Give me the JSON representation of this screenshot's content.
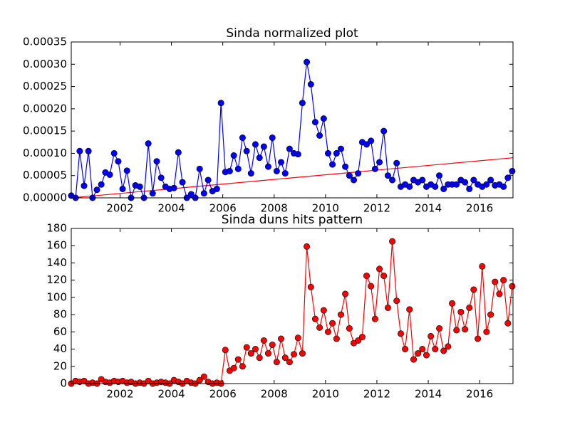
{
  "chart_data": [
    {
      "type": "line",
      "title": "Sinda normalized plot",
      "x": [
        2000.1,
        2000.27,
        2000.43,
        2000.6,
        2000.77,
        2000.93,
        2001.1,
        2001.27,
        2001.43,
        2001.6,
        2001.77,
        2001.93,
        2002.1,
        2002.27,
        2002.43,
        2002.6,
        2002.77,
        2002.93,
        2003.1,
        2003.27,
        2003.43,
        2003.6,
        2003.77,
        2003.93,
        2004.1,
        2004.27,
        2004.43,
        2004.6,
        2004.77,
        2004.93,
        2005.1,
        2005.27,
        2005.43,
        2005.6,
        2005.77,
        2005.93,
        2006.1,
        2006.27,
        2006.43,
        2006.6,
        2006.77,
        2006.93,
        2007.1,
        2007.27,
        2007.43,
        2007.6,
        2007.77,
        2007.93,
        2008.1,
        2008.27,
        2008.43,
        2008.6,
        2008.77,
        2008.93,
        2009.1,
        2009.27,
        2009.43,
        2009.6,
        2009.77,
        2009.93,
        2010.1,
        2010.27,
        2010.43,
        2010.6,
        2010.77,
        2010.93,
        2011.1,
        2011.27,
        2011.43,
        2011.6,
        2011.77,
        2011.93,
        2012.1,
        2012.27,
        2012.43,
        2012.6,
        2012.77,
        2012.93,
        2013.1,
        2013.27,
        2013.43,
        2013.6,
        2013.77,
        2013.93,
        2014.1,
        2014.27,
        2014.43,
        2014.6,
        2014.77,
        2014.93,
        2015.1,
        2015.27,
        2015.43,
        2015.6,
        2015.77,
        2015.93,
        2016.1,
        2016.27,
        2016.43,
        2016.6,
        2016.77,
        2016.93,
        2017.1,
        2017.27
      ],
      "series": [
        {
          "color": "#0000ff",
          "values": [
            5e-06,
            0,
            0.000105,
            2.7e-05,
            0.000105,
            0,
            1.8e-05,
            3e-05,
            5.7e-05,
            5.2e-05,
            0.0001,
            8.2e-05,
            2e-05,
            6.1e-05,
            0,
            2.8e-05,
            2.5e-05,
            0,
            0.000122,
            1e-05,
            8.2e-05,
            4.5e-05,
            2.5e-05,
            2e-05,
            2.2e-05,
            0.000102,
            3.5e-05,
            0,
            8e-06,
            0,
            6.5e-05,
            1e-05,
            4e-05,
            1.5e-05,
            2e-05,
            0.000213,
            5.8e-05,
            6e-05,
            9.5e-05,
            6.5e-05,
            0.000135,
            0.000105,
            5.5e-05,
            0.00012,
            9e-05,
            0.000115,
            7e-05,
            0.000135,
            6e-05,
            8e-05,
            5.5e-05,
            0.00011,
            0.0001,
            9.8e-05,
            0.000213,
            0.000305,
            0.000255,
            0.00017,
            0.00014,
            0.000178,
            0.0001,
            7.5e-05,
            0.0001,
            0.00011,
            7e-05,
            5e-05,
            4e-05,
            5.5e-05,
            0.000125,
            0.00012,
            0.000128,
            6.5e-05,
            8e-05,
            0.00015,
            5e-05,
            4e-05,
            7.8e-05,
            2.5e-05,
            3e-05,
            2.5e-05,
            4e-05,
            3.5e-05,
            4e-05,
            2.5e-05,
            3e-05,
            2.5e-05,
            5e-05,
            2e-05,
            3e-05,
            3e-05,
            3e-05,
            4e-05,
            3.5e-05,
            2e-05,
            4e-05,
            3e-05,
            2.5e-05,
            3e-05,
            4e-05,
            2.8e-05,
            3e-05,
            2.5e-05,
            4.5e-05,
            6e-05
          ]
        }
      ],
      "trend": {
        "color": "#ff0000",
        "x": [
          2000.1,
          2017.3
        ],
        "values": [
          0,
          9e-05
        ]
      },
      "xlim": [
        2000.1,
        2017.3
      ],
      "xticks": [
        2002,
        2004,
        2006,
        2008,
        2010,
        2012,
        2014,
        2016
      ],
      "ylim": [
        0,
        0.00035
      ],
      "yticks": [
        {
          "value": 0,
          "label": "0.00000"
        },
        {
          "value": 5e-05,
          "label": "0.00005"
        },
        {
          "value": 0.0001,
          "label": "0.00010"
        },
        {
          "value": 0.00015,
          "label": "0.00015"
        },
        {
          "value": 0.0002,
          "label": "0.00020"
        },
        {
          "value": 0.00025,
          "label": "0.00025"
        },
        {
          "value": 0.0003,
          "label": "0.00030"
        },
        {
          "value": 0.00035,
          "label": "0.00035"
        }
      ]
    },
    {
      "type": "line",
      "title": "Sinda duns hits pattern",
      "x": [
        2000.1,
        2000.27,
        2000.43,
        2000.6,
        2000.77,
        2000.93,
        2001.1,
        2001.27,
        2001.43,
        2001.6,
        2001.77,
        2001.93,
        2002.1,
        2002.27,
        2002.43,
        2002.6,
        2002.77,
        2002.93,
        2003.1,
        2003.27,
        2003.43,
        2003.6,
        2003.77,
        2003.93,
        2004.1,
        2004.27,
        2004.43,
        2004.6,
        2004.77,
        2004.93,
        2005.1,
        2005.27,
        2005.43,
        2005.6,
        2005.77,
        2005.93,
        2006.1,
        2006.27,
        2006.43,
        2006.6,
        2006.77,
        2006.93,
        2007.1,
        2007.27,
        2007.43,
        2007.6,
        2007.77,
        2007.93,
        2008.1,
        2008.27,
        2008.43,
        2008.6,
        2008.77,
        2008.93,
        2009.1,
        2009.27,
        2009.43,
        2009.6,
        2009.77,
        2009.93,
        2010.1,
        2010.27,
        2010.43,
        2010.6,
        2010.77,
        2010.93,
        2011.1,
        2011.27,
        2011.43,
        2011.6,
        2011.77,
        2011.93,
        2012.1,
        2012.27,
        2012.43,
        2012.6,
        2012.77,
        2012.93,
        2013.1,
        2013.27,
        2013.43,
        2013.6,
        2013.77,
        2013.93,
        2014.1,
        2014.27,
        2014.43,
        2014.6,
        2014.77,
        2014.93,
        2015.1,
        2015.27,
        2015.43,
        2015.6,
        2015.77,
        2015.93,
        2016.1,
        2016.27,
        2016.43,
        2016.6,
        2016.77,
        2016.93,
        2017.1,
        2017.27
      ],
      "series": [
        {
          "color": "#ff0000",
          "values": [
            0,
            3,
            2,
            3,
            0,
            1,
            0,
            5,
            2,
            1,
            3,
            2,
            3,
            1,
            2,
            0,
            1,
            0,
            3,
            0,
            1,
            2,
            1,
            0,
            4,
            2,
            0,
            3,
            1,
            0,
            4,
            8,
            2,
            0,
            1,
            0,
            39,
            15,
            18,
            28,
            20,
            42,
            35,
            40,
            30,
            50,
            35,
            45,
            25,
            52,
            30,
            25,
            34,
            53,
            35,
            159,
            112,
            75,
            65,
            85,
            60,
            70,
            52,
            80,
            104,
            64,
            47,
            50,
            54,
            125,
            113,
            75,
            133,
            125,
            88,
            165,
            96,
            58,
            40,
            86,
            28,
            35,
            40,
            33,
            55,
            40,
            64,
            38,
            43,
            93,
            62,
            83,
            63,
            88,
            109,
            52,
            136,
            60,
            80,
            118,
            104,
            120,
            70,
            113
          ]
        }
      ],
      "xlim": [
        2000.1,
        2017.3
      ],
      "xticks": [
        2002,
        2004,
        2006,
        2008,
        2010,
        2012,
        2014,
        2016
      ],
      "ylim": [
        0,
        180
      ],
      "yticks": [
        0,
        20,
        40,
        60,
        80,
        100,
        120,
        140,
        160,
        180
      ]
    }
  ]
}
